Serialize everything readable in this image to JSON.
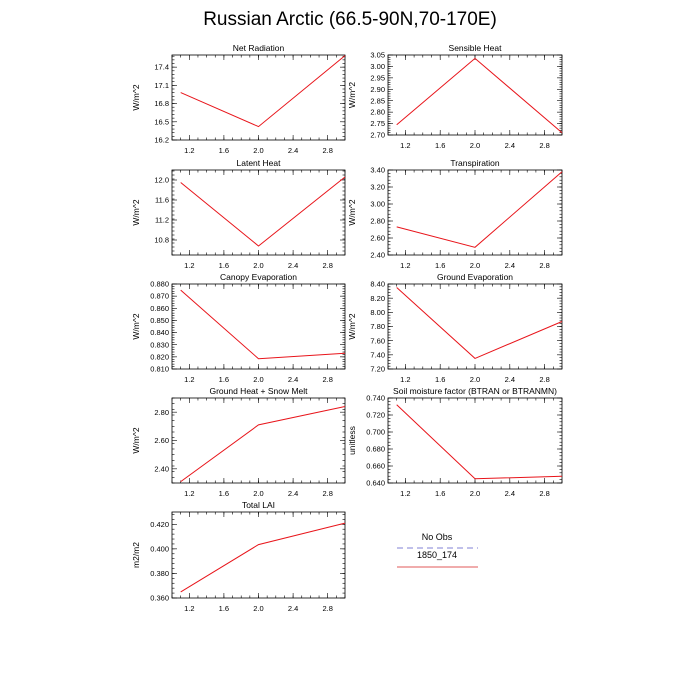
{
  "title": "Russian Arctic (66.5-90N,70-170E)",
  "legend": {
    "entries": [
      {
        "label": "No Obs",
        "color": "#9a9ade",
        "dash": true
      },
      {
        "label": "1850_174",
        "color": "#e87a7a",
        "dash": false
      }
    ]
  },
  "chart_data": [
    {
      "type": "line",
      "title": "Net Radiation",
      "ylabel": "W/m^2",
      "xlim": [
        1,
        3
      ],
      "ylim": [
        16.2,
        17.6
      ],
      "xticks": [
        1.2,
        1.6,
        2.0,
        2.4,
        2.8
      ],
      "xtick_labels": [
        "1.2",
        "1.6",
        "2.0",
        "2.4",
        "2.8"
      ],
      "yticks": [
        16.2,
        16.5,
        16.8,
        17.1,
        17.4
      ],
      "ytick_labels": [
        "16.2",
        "16.5",
        "16.8",
        "17.1",
        "17.4"
      ],
      "series": [
        {
          "x": [
            1.1,
            2.0,
            3.0
          ],
          "y": [
            16.98,
            16.42,
            17.59
          ],
          "color": "#e8141a"
        }
      ]
    },
    {
      "type": "line",
      "title": "Sensible Heat",
      "ylabel": "W/m^2",
      "xlim": [
        1,
        3
      ],
      "ylim": [
        2.7,
        3.05
      ],
      "xticks": [
        1.2,
        1.6,
        2.0,
        2.4,
        2.8
      ],
      "xtick_labels": [
        "1.2",
        "1.6",
        "2.0",
        "2.4",
        "2.8"
      ],
      "yticks": [
        2.7,
        2.75,
        2.8,
        2.85,
        2.9,
        2.95,
        3.0,
        3.05
      ],
      "ytick_labels": [
        "2.70",
        "2.75",
        "2.80",
        "2.85",
        "2.90",
        "2.95",
        "3.00",
        "3.05"
      ],
      "series": [
        {
          "x": [
            1.1,
            2.0,
            3.0
          ],
          "y": [
            2.745,
            3.035,
            2.71
          ],
          "color": "#e8141a"
        }
      ]
    },
    {
      "type": "line",
      "title": "Latent Heat",
      "ylabel": "W/m^2",
      "xlim": [
        1,
        3
      ],
      "ylim": [
        10.5,
        12.2
      ],
      "xticks": [
        1.2,
        1.6,
        2.0,
        2.4,
        2.8
      ],
      "xtick_labels": [
        "1.2",
        "1.6",
        "2.0",
        "2.4",
        "2.8"
      ],
      "yticks": [
        10.8,
        11.2,
        11.6,
        12.0
      ],
      "ytick_labels": [
        "10.8",
        "11.2",
        "11.6",
        "12.0"
      ],
      "series": [
        {
          "x": [
            1.1,
            2.0,
            3.0
          ],
          "y": [
            11.95,
            10.68,
            12.06
          ],
          "color": "#e8141a"
        }
      ]
    },
    {
      "type": "line",
      "title": "Transpiration",
      "ylabel": "W/m^2",
      "xlim": [
        1,
        3
      ],
      "ylim": [
        2.4,
        3.4
      ],
      "xticks": [
        1.2,
        1.6,
        2.0,
        2.4,
        2.8
      ],
      "xtick_labels": [
        "1.2",
        "1.6",
        "2.0",
        "2.4",
        "2.8"
      ],
      "yticks": [
        2.4,
        2.6,
        2.8,
        3.0,
        3.2,
        3.4
      ],
      "ytick_labels": [
        "2.40",
        "2.60",
        "2.80",
        "3.00",
        "3.20",
        "3.40"
      ],
      "series": [
        {
          "x": [
            1.1,
            2.0,
            3.0
          ],
          "y": [
            2.73,
            2.49,
            3.38
          ],
          "color": "#e8141a"
        }
      ]
    },
    {
      "type": "line",
      "title": "Canopy Evaporation",
      "ylabel": "W/m^2",
      "xlim": [
        1,
        3
      ],
      "ylim": [
        0.81,
        0.88
      ],
      "xticks": [
        1.2,
        1.6,
        2.0,
        2.4,
        2.8
      ],
      "xtick_labels": [
        "1.2",
        "1.6",
        "2.0",
        "2.4",
        "2.8"
      ],
      "yticks": [
        0.81,
        0.82,
        0.83,
        0.84,
        0.85,
        0.86,
        0.87,
        0.88
      ],
      "ytick_labels": [
        "0.810",
        "0.820",
        "0.830",
        "0.840",
        "0.850",
        "0.860",
        "0.870",
        "0.880"
      ],
      "series": [
        {
          "x": [
            1.1,
            2.0,
            3.0
          ],
          "y": [
            0.875,
            0.8185,
            0.823
          ],
          "color": "#e8141a"
        }
      ]
    },
    {
      "type": "line",
      "title": "Ground Evaporation",
      "ylabel": "W/m^2",
      "xlim": [
        1,
        3
      ],
      "ylim": [
        7.2,
        8.4
      ],
      "xticks": [
        1.2,
        1.6,
        2.0,
        2.4,
        2.8
      ],
      "xtick_labels": [
        "1.2",
        "1.6",
        "2.0",
        "2.4",
        "2.8"
      ],
      "yticks": [
        7.2,
        7.4,
        7.6,
        7.8,
        8.0,
        8.2,
        8.4
      ],
      "ytick_labels": [
        "7.20",
        "7.40",
        "7.60",
        "7.80",
        "8.00",
        "8.20",
        "8.40"
      ],
      "series": [
        {
          "x": [
            1.1,
            2.0,
            3.0
          ],
          "y": [
            8.35,
            7.35,
            7.87
          ],
          "color": "#e8141a"
        }
      ]
    },
    {
      "type": "line",
      "title": "Ground Heat + Snow Melt",
      "ylabel": "W/m^2",
      "xlim": [
        1,
        3
      ],
      "ylim": [
        2.3,
        2.9
      ],
      "xticks": [
        1.2,
        1.6,
        2.0,
        2.4,
        2.8
      ],
      "xtick_labels": [
        "1.2",
        "1.6",
        "2.0",
        "2.4",
        "2.8"
      ],
      "yticks": [
        2.4,
        2.6,
        2.8
      ],
      "ytick_labels": [
        "2.40",
        "2.60",
        "2.80"
      ],
      "series": [
        {
          "x": [
            1.1,
            2.0,
            3.0
          ],
          "y": [
            2.31,
            2.71,
            2.84
          ],
          "color": "#e8141a"
        }
      ]
    },
    {
      "type": "line",
      "title": "Soil moisture factor (BTRAN or BTRANMN)",
      "ylabel": "unitless",
      "xlim": [
        1,
        3
      ],
      "ylim": [
        0.64,
        0.74
      ],
      "xticks": [
        1.2,
        1.6,
        2.0,
        2.4,
        2.8
      ],
      "xtick_labels": [
        "1.2",
        "1.6",
        "2.0",
        "2.4",
        "2.8"
      ],
      "yticks": [
        0.64,
        0.66,
        0.68,
        0.7,
        0.72,
        0.74
      ],
      "ytick_labels": [
        "0.640",
        "0.660",
        "0.680",
        "0.700",
        "0.720",
        "0.740"
      ],
      "series": [
        {
          "x": [
            1.1,
            2.0,
            3.0
          ],
          "y": [
            0.732,
            0.645,
            0.648
          ],
          "color": "#e8141a"
        }
      ]
    },
    {
      "type": "line",
      "title": "Total LAI",
      "ylabel": "m2/m2",
      "xlim": [
        1,
        3
      ],
      "ylim": [
        0.36,
        0.43
      ],
      "xticks": [
        1.2,
        1.6,
        2.0,
        2.4,
        2.8
      ],
      "xtick_labels": [
        "1.2",
        "1.6",
        "2.0",
        "2.4",
        "2.8"
      ],
      "yticks": [
        0.36,
        0.38,
        0.4,
        0.42
      ],
      "ytick_labels": [
        "0.360",
        "0.380",
        "0.400",
        "0.420"
      ],
      "series": [
        {
          "x": [
            1.1,
            2.0,
            3.0
          ],
          "y": [
            0.365,
            0.4035,
            0.421
          ],
          "color": "#e8141a"
        }
      ]
    }
  ]
}
